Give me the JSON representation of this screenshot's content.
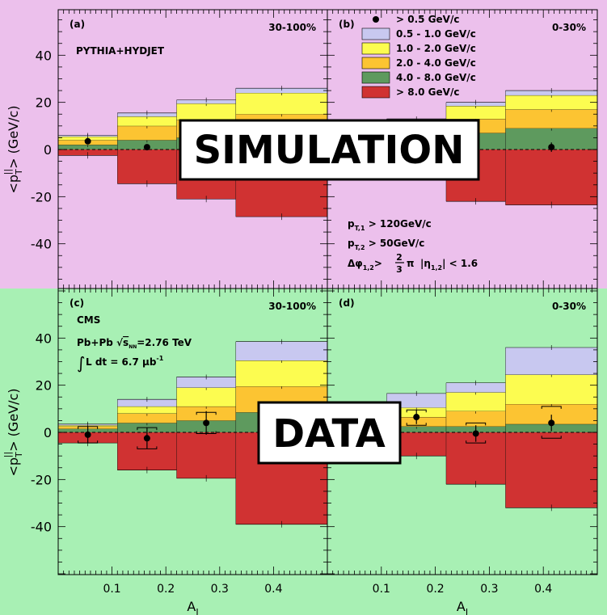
{
  "colors": {
    "sim_bg": "#ecc0ec",
    "data_bg": "#a8f0b4",
    "plot_bg": "#ffffff",
    "b05_10": "#c8c8f0",
    "b10_20": "#fcfc50",
    "b20_40": "#fcc432",
    "b40_80": "#5e9a5e",
    "b80": "#d03232"
  },
  "banners": {
    "simulation": "SIMULATION",
    "data": "DATA"
  },
  "legend": {
    "entries": [
      {
        "label": "> 0.5 GeV/c",
        "color": "#000000",
        "marker": "dot"
      },
      {
        "label": "0.5 - 1.0 GeV/c",
        "color": "#c8c8f0",
        "marker": "box"
      },
      {
        "label": "1.0 - 2.0 GeV/c",
        "color": "#fcfc50",
        "marker": "box"
      },
      {
        "label": "2.0 - 4.0 GeV/c",
        "color": "#fcc432",
        "marker": "box"
      },
      {
        "label": "4.0 - 8.0 GeV/c",
        "color": "#5e9a5e",
        "marker": "box"
      },
      {
        "label": "> 8.0 GeV/c",
        "color": "#d03232",
        "marker": "box"
      }
    ]
  },
  "cuts": {
    "pt1_main": "p",
    "pt1_sub": "T,1",
    "pt1_value": " > 120GeV/c",
    "pt2_main": "p",
    "pt2_sub": "T,2",
    "pt2_value": " > 50GeV/c",
    "dphi_main": "Δφ",
    "dphi_sub": "1,2",
    "dphi_gt": ">",
    "frac_num": "2",
    "frac_den": "3",
    "pi": "π",
    "eta_main": "|η",
    "eta_sub": "1,2",
    "eta_value": "| < 1.6"
  },
  "cms": {
    "name": "CMS",
    "line1_a": "Pb+Pb ",
    "line1_sqrt": "√",
    "line1_s": "s",
    "line1_sub": "NN",
    "line1_b": "=2.76 TeV",
    "line2_int": "∫",
    "line2_a": "L dt = 6.7 μb",
    "line2_sup": "-1"
  },
  "chart_data": [
    {
      "id": "a",
      "type": "bar",
      "panel_label": "(a)",
      "centrality": "30-100%",
      "generator": "PYTHIA+HYDJET",
      "xlabel": "",
      "ylabel": "",
      "xlim": [
        0,
        0.5
      ],
      "ylim": [
        -60,
        60
      ],
      "xticks": [],
      "yticks": [
        -40,
        -20,
        0,
        20,
        40
      ],
      "bin_edges": [
        0,
        0.11,
        0.22,
        0.33,
        0.5
      ],
      "stacks": [
        {
          "name": "> 8.0 GeV/c",
          "values": [
            -2.5,
            -14.5,
            -21,
            -28.5
          ]
        },
        {
          "name": "4.0 - 8.0 GeV/c",
          "values": [
            2,
            4,
            5,
            6
          ]
        },
        {
          "name": "2.0 - 4.0 GeV/c",
          "values": [
            2,
            6,
            7.5,
            9
          ]
        },
        {
          "name": "1.0 - 2.0 GeV/c",
          "values": [
            1.5,
            4,
            7,
            9
          ]
        },
        {
          "name": "0.5 - 1.0 GeV/c",
          "values": [
            0.5,
            1.5,
            1.5,
            2
          ]
        }
      ],
      "points": [
        {
          "x": 0.055,
          "y": 3.5,
          "xerr": 0,
          "yerr": 0
        },
        {
          "x": 0.165,
          "y": 1,
          "xerr": 0,
          "yerr": 0
        }
      ]
    },
    {
      "id": "b",
      "type": "bar",
      "panel_label": "(b)",
      "centrality": "0-30%",
      "xlabel": "",
      "ylabel": "",
      "xlim": [
        0,
        0.5
      ],
      "ylim": [
        -60,
        60
      ],
      "xticks": [],
      "yticks": [
        -40,
        -20,
        0,
        20,
        40
      ],
      "bin_edges": [
        0,
        0.11,
        0.22,
        0.33,
        0.5
      ],
      "stacks": [
        {
          "name": "> 8.0 GeV/c",
          "values": [
            -2,
            -9,
            -22,
            -23.5
          ]
        },
        {
          "name": "4.0 - 8.0 GeV/c",
          "values": [
            2,
            4,
            7,
            9
          ]
        },
        {
          "name": "2.0 - 4.0 GeV/c",
          "values": [
            2,
            4,
            6,
            8
          ]
        },
        {
          "name": "1.0 - 2.0 GeV/c",
          "values": [
            1.5,
            4,
            5.5,
            6
          ]
        },
        {
          "name": "0.5 - 1.0 GeV/c",
          "values": [
            0.5,
            1,
            1.5,
            2
          ]
        }
      ],
      "points": [
        {
          "x": 0.415,
          "y": 1,
          "xerr": 0,
          "yerr": 2
        }
      ]
    },
    {
      "id": "c",
      "type": "bar",
      "panel_label": "(c)",
      "centrality": "30-100%",
      "xlabel": "A",
      "xlabel_sub": "J",
      "ylabel": "",
      "xlim": [
        0,
        0.5
      ],
      "ylim": [
        -60,
        60
      ],
      "xticks": [
        0.1,
        0.2,
        0.3,
        0.4
      ],
      "yticks": [
        -40,
        -20,
        0,
        20,
        40
      ],
      "bin_edges": [
        0,
        0.11,
        0.22,
        0.33,
        0.5
      ],
      "stacks": [
        {
          "name": "> 8.0 GeV/c",
          "values": [
            -4.5,
            -16,
            -19.5,
            -39
          ]
        },
        {
          "name": "4.0 - 8.0 GeV/c",
          "values": [
            1.5,
            4,
            5,
            8.5
          ]
        },
        {
          "name": "2.0 - 4.0 GeV/c",
          "values": [
            1,
            4,
            6,
            11
          ]
        },
        {
          "name": "1.0 - 2.0 GeV/c",
          "values": [
            0.5,
            3,
            8,
            11
          ]
        },
        {
          "name": "0.5 - 1.0 GeV/c",
          "values": [
            0.5,
            3,
            4.5,
            8
          ]
        }
      ],
      "points": [
        {
          "x": 0.055,
          "y": -1,
          "xerr": 0,
          "yerr": 3.5,
          "syst_lo": -4.5,
          "syst_hi": 2.5
        },
        {
          "x": 0.165,
          "y": -2.5,
          "xerr": 0,
          "yerr": 4.5,
          "syst_lo": -7,
          "syst_hi": 2
        },
        {
          "x": 0.275,
          "y": 4,
          "xerr": 0,
          "yerr": 5,
          "syst_lo": -0.5,
          "syst_hi": 8.5
        }
      ]
    },
    {
      "id": "d",
      "type": "bar",
      "panel_label": "(d)",
      "centrality": "0-30%",
      "xlabel": "A",
      "xlabel_sub": "J",
      "ylabel": "",
      "xlim": [
        0,
        0.5
      ],
      "ylim": [
        -60,
        60
      ],
      "xticks": [
        0.1,
        0.2,
        0.3,
        0.4
      ],
      "yticks": [
        -40,
        -20,
        0,
        20,
        40
      ],
      "bin_edges": [
        0,
        0.11,
        0.22,
        0.33,
        0.5
      ],
      "stacks": [
        {
          "name": "> 8.0 GeV/c",
          "values": [
            -2,
            -10,
            -22,
            -32
          ]
        },
        {
          "name": "4.0 - 8.0 GeV/c",
          "values": [
            1.5,
            2.5,
            2.5,
            3.5
          ]
        },
        {
          "name": "2.0 - 4.0 GeV/c",
          "values": [
            1.5,
            4,
            6.5,
            8.5
          ]
        },
        {
          "name": "1.0 - 2.0 GeV/c",
          "values": [
            1,
            4,
            8,
            12.5
          ]
        },
        {
          "name": "0.5 - 1.0 GeV/c",
          "values": [
            0.5,
            6,
            4,
            11.5
          ]
        }
      ],
      "points": [
        {
          "x": 0.165,
          "y": 6.5,
          "xerr": 0,
          "yerr": 3,
          "syst_lo": 3,
          "syst_hi": 9.5
        },
        {
          "x": 0.275,
          "y": -0.5,
          "xerr": 0,
          "yerr": 3.5,
          "syst_lo": -4.5,
          "syst_hi": 4
        },
        {
          "x": 0.415,
          "y": 4,
          "xerr": 0,
          "yerr": 3.5,
          "syst_lo": -2.5,
          "syst_hi": 11
        }
      ]
    }
  ],
  "axes_text": {
    "ylabel_main": "<p",
    "ylabel_sub": "T",
    "ylabel_sup": "||",
    "ylabel_tail": "> (GeV/c)"
  }
}
